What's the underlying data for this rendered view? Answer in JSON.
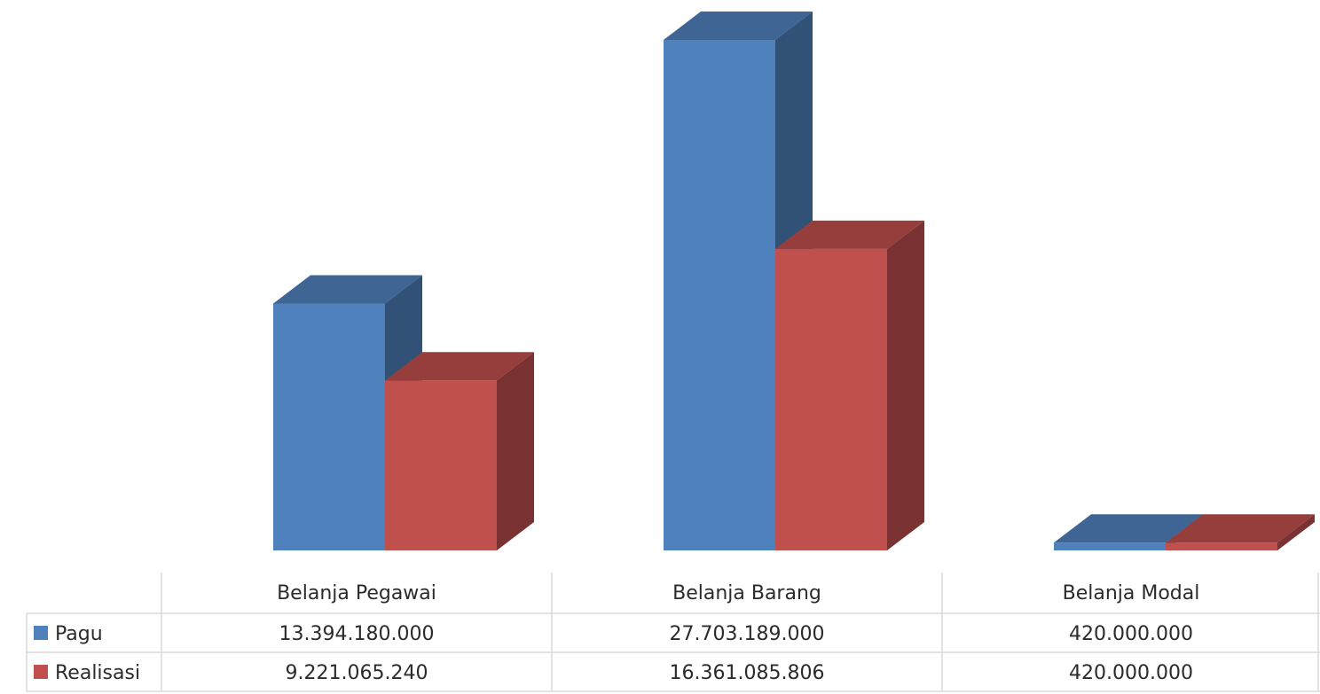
{
  "chart_data": {
    "type": "bar",
    "style": "3d-clustered-column-with-data-table",
    "categories": [
      "Belanja Pegawai",
      "Belanja Barang",
      "Belanja Modal"
    ],
    "series": [
      {
        "name": "Pagu",
        "values": [
          13394180000,
          27703189000,
          420000000
        ],
        "labels": [
          "13.394.180.000",
          "27.703.189.000",
          "420.000.000"
        ],
        "color": "#4f81bd"
      },
      {
        "name": "Realisasi",
        "values": [
          9221065240,
          16361085806,
          420000000
        ],
        "labels": [
          "9.221.065.240",
          "16.361.085.806",
          "420.000.000"
        ],
        "color": "#c0504d"
      }
    ],
    "ylim": [
      0,
      28000000000
    ],
    "grid": false,
    "legend": "data-table-left",
    "title": "",
    "xlabel": "",
    "ylabel": ""
  }
}
